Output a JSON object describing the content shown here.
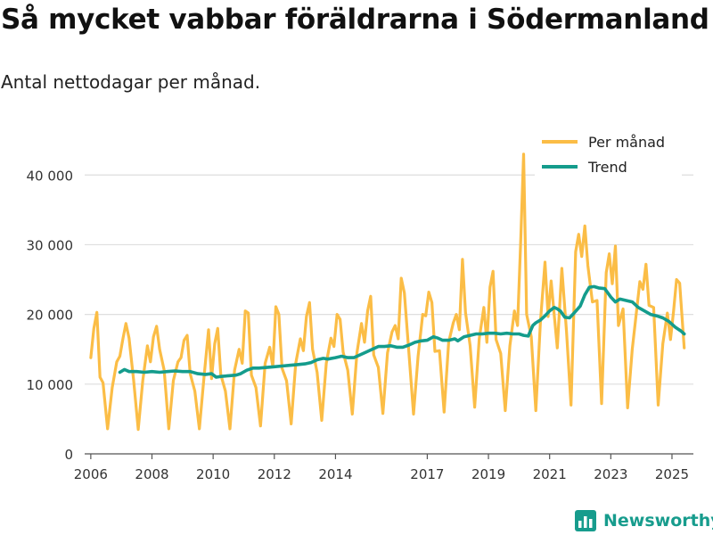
{
  "title": "Så mycket vabbar föräldrarna i Södermanland",
  "subtitle": "Antal nettodagar per månad.",
  "brand": {
    "name": "Newsworthy",
    "color": "#179c8d"
  },
  "chart_data": {
    "type": "line",
    "title": "Så mycket vabbar föräldrarna i Södermanland",
    "subtitle": "Antal nettodagar per månad.",
    "xlabel": "",
    "ylabel": "",
    "xlim": [
      2005.8,
      2025.7
    ],
    "ylim": [
      0,
      44000
    ],
    "grid": true,
    "legend_position": "top-right",
    "x_ticks": [
      {
        "value": 2006,
        "label": "2006"
      },
      {
        "value": 2008,
        "label": "2008"
      },
      {
        "value": 2010,
        "label": "2010"
      },
      {
        "value": 2012,
        "label": "2012"
      },
      {
        "value": 2014,
        "label": "2014"
      },
      {
        "value": 2017,
        "label": "2017"
      },
      {
        "value": 2019,
        "label": "2019"
      },
      {
        "value": 2021,
        "label": "2021"
      },
      {
        "value": 2023,
        "label": "2023"
      },
      {
        "value": 2025,
        "label": "2025"
      }
    ],
    "y_ticks": [
      {
        "value": 0,
        "label": "0"
      },
      {
        "value": 10000,
        "label": "10 000"
      },
      {
        "value": 20000,
        "label": "20 000"
      },
      {
        "value": 30000,
        "label": "30 000"
      },
      {
        "value": 40000,
        "label": "40 000"
      }
    ],
    "series": [
      {
        "name": "Per månad",
        "color": "#fbbd46",
        "x": [
          2006.0,
          2006.1,
          2006.2,
          2006.3,
          2006.4,
          2006.55,
          2006.7,
          2006.85,
          2006.95,
          2007.05,
          2007.15,
          2007.25,
          2007.4,
          2007.55,
          2007.7,
          2007.85,
          2007.95,
          2008.05,
          2008.15,
          2008.25,
          2008.4,
          2008.55,
          2008.7,
          2008.85,
          2008.95,
          2009.05,
          2009.15,
          2009.25,
          2009.4,
          2009.55,
          2009.7,
          2009.85,
          2009.95,
          2010.05,
          2010.15,
          2010.25,
          2010.4,
          2010.55,
          2010.7,
          2010.85,
          2010.95,
          2011.05,
          2011.15,
          2011.25,
          2011.4,
          2011.55,
          2011.7,
          2011.85,
          2011.95,
          2012.05,
          2012.15,
          2012.25,
          2012.4,
          2012.55,
          2012.7,
          2012.85,
          2012.95,
          2013.05,
          2013.15,
          2013.25,
          2013.4,
          2013.55,
          2013.7,
          2013.85,
          2013.95,
          2014.05,
          2014.15,
          2014.25,
          2014.4,
          2014.55,
          2014.7,
          2014.85,
          2014.95,
          2015.05,
          2015.15,
          2015.25,
          2015.4,
          2015.55,
          2015.7,
          2015.85,
          2015.95,
          2016.05,
          2016.15,
          2016.25,
          2016.4,
          2016.55,
          2016.7,
          2016.85,
          2016.95,
          2017.05,
          2017.15,
          2017.25,
          2017.4,
          2017.55,
          2017.7,
          2017.85,
          2017.95,
          2018.05,
          2018.15,
          2018.25,
          2018.4,
          2018.55,
          2018.7,
          2018.85,
          2018.95,
          2019.05,
          2019.15,
          2019.25,
          2019.4,
          2019.55,
          2019.7,
          2019.85,
          2019.95,
          2020.05,
          2020.15,
          2020.25,
          2020.4,
          2020.55,
          2020.7,
          2020.85,
          2020.95,
          2021.05,
          2021.15,
          2021.25,
          2021.4,
          2021.55,
          2021.7,
          2021.85,
          2021.95,
          2022.05,
          2022.15,
          2022.25,
          2022.4,
          2022.55,
          2022.7,
          2022.85,
          2022.95,
          2023.05,
          2023.15,
          2023.25,
          2023.4,
          2023.55,
          2023.7,
          2023.85,
          2023.95,
          2024.05,
          2024.15,
          2024.25,
          2024.4,
          2024.55,
          2024.7,
          2024.85,
          2024.95,
          2025.05,
          2025.15,
          2025.25,
          2025.4
        ],
        "values": [
          13800,
          18000,
          20300,
          11000,
          10200,
          3600,
          9500,
          13200,
          14000,
          16500,
          18700,
          16600,
          10600,
          3500,
          10500,
          15500,
          13200,
          16800,
          18300,
          15000,
          12000,
          3600,
          10500,
          13200,
          13800,
          16300,
          17000,
          11500,
          9000,
          3600,
          11000,
          17800,
          10800,
          15800,
          18000,
          11400,
          9000,
          3600,
          12000,
          15000,
          13000,
          20500,
          20200,
          11300,
          9500,
          4000,
          13000,
          15300,
          12500,
          21100,
          20000,
          12300,
          10500,
          4300,
          13000,
          16500,
          14800,
          19700,
          21700,
          15000,
          11700,
          4800,
          13000,
          16600,
          15400,
          20000,
          19300,
          14600,
          12000,
          5700,
          14500,
          18700,
          16000,
          20500,
          22600,
          14200,
          12400,
          5800,
          14500,
          17500,
          18400,
          16500,
          25200,
          23100,
          14500,
          5700,
          14000,
          20000,
          19800,
          23200,
          21700,
          14700,
          14800,
          6000,
          16000,
          18800,
          20000,
          17800,
          27900,
          20300,
          15500,
          6700,
          16500,
          21000,
          16000,
          23900,
          26200,
          16400,
          14400,
          6200,
          15500,
          20500,
          18400,
          30000,
          43000,
          20000,
          16800,
          6200,
          19000,
          27500,
          19700,
          24800,
          20000,
          15200,
          26600,
          17600,
          7000,
          29000,
          31500,
          28300,
          32700,
          27000,
          21800,
          22000,
          7200,
          26000,
          28700,
          24400,
          29800,
          18400,
          20800,
          6600,
          15000,
          20800,
          24700,
          23600,
          27200,
          21300,
          21000,
          7000,
          15800,
          20200,
          16400,
          20400,
          25000,
          24500,
          15200
        ]
      },
      {
        "name": "Trend",
        "color": "#149c8c",
        "x": [
          2006.95,
          2007.1,
          2007.25,
          2007.5,
          2007.75,
          2008.0,
          2008.25,
          2008.5,
          2008.75,
          2009.0,
          2009.25,
          2009.5,
          2009.75,
          2009.95,
          2010.1,
          2010.25,
          2010.5,
          2010.75,
          2010.9,
          2011.1,
          2011.3,
          2011.5,
          2011.75,
          2012.0,
          2012.25,
          2012.5,
          2012.75,
          2013.0,
          2013.2,
          2013.4,
          2013.6,
          2013.75,
          2014.0,
          2014.2,
          2014.4,
          2014.6,
          2014.8,
          2015.0,
          2015.2,
          2015.4,
          2015.6,
          2015.8,
          2016.0,
          2016.2,
          2016.4,
          2016.6,
          2016.8,
          2017.0,
          2017.2,
          2017.35,
          2017.5,
          2017.7,
          2017.9,
          2018.0,
          2018.2,
          2018.4,
          2018.6,
          2018.8,
          2019.0,
          2019.2,
          2019.4,
          2019.6,
          2019.8,
          2020.0,
          2020.15,
          2020.3,
          2020.45,
          2020.55,
          2020.7,
          2020.85,
          2021.0,
          2021.15,
          2021.25,
          2021.35,
          2021.5,
          2021.65,
          2021.8,
          2022.0,
          2022.15,
          2022.3,
          2022.45,
          2022.6,
          2022.8,
          2023.0,
          2023.15,
          2023.3,
          2023.5,
          2023.7,
          2023.9,
          2024.1,
          2024.3,
          2024.5,
          2024.7,
          2024.9,
          2025.1,
          2025.3,
          2025.4
        ],
        "values": [
          11700,
          12100,
          11800,
          11800,
          11700,
          11800,
          11700,
          11800,
          11900,
          11800,
          11800,
          11500,
          11400,
          11500,
          11000,
          11100,
          11200,
          11300,
          11500,
          12000,
          12300,
          12300,
          12400,
          12500,
          12600,
          12700,
          12800,
          12900,
          13100,
          13500,
          13700,
          13600,
          13800,
          14000,
          13800,
          13800,
          14200,
          14600,
          15000,
          15400,
          15400,
          15500,
          15300,
          15300,
          15600,
          16000,
          16200,
          16300,
          16800,
          16600,
          16300,
          16300,
          16500,
          16200,
          16800,
          17000,
          17200,
          17200,
          17300,
          17300,
          17200,
          17300,
          17200,
          17200,
          17000,
          16900,
          18400,
          18800,
          19200,
          19800,
          20500,
          21000,
          20800,
          20500,
          19600,
          19500,
          20200,
          21200,
          22800,
          23900,
          24000,
          23800,
          23700,
          22500,
          21800,
          22200,
          22000,
          21800,
          21000,
          20500,
          20000,
          19800,
          19500,
          19000,
          18200,
          17600,
          17200
        ]
      }
    ]
  }
}
